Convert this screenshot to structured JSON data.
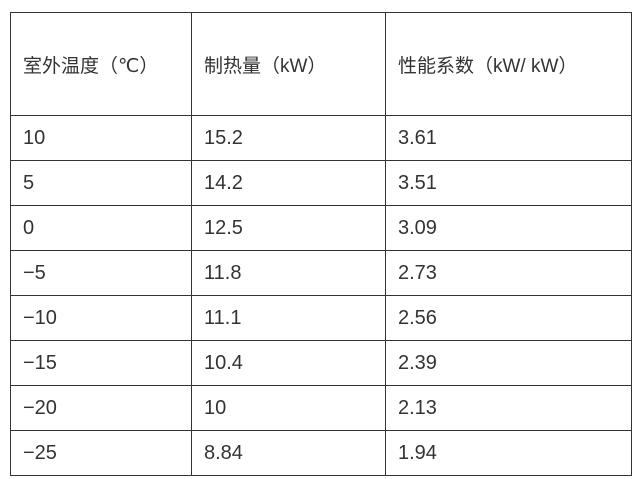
{
  "table": {
    "headers": [
      "室外温度（℃）",
      "制热量（kW）",
      "性能系数（kW/ kW）"
    ],
    "rows": [
      [
        "10",
        "15.2",
        "3.61"
      ],
      [
        "5",
        "14.2",
        "3.51"
      ],
      [
        "0",
        "12.5",
        "3.09"
      ],
      [
        "−5",
        "11.8",
        "2.73"
      ],
      [
        "−10",
        "11.1",
        "2.56"
      ],
      [
        "−15",
        "10.4",
        "2.39"
      ],
      [
        "−20",
        "10",
        "2.13"
      ],
      [
        "−25",
        "8.84",
        "1.94"
      ]
    ]
  }
}
